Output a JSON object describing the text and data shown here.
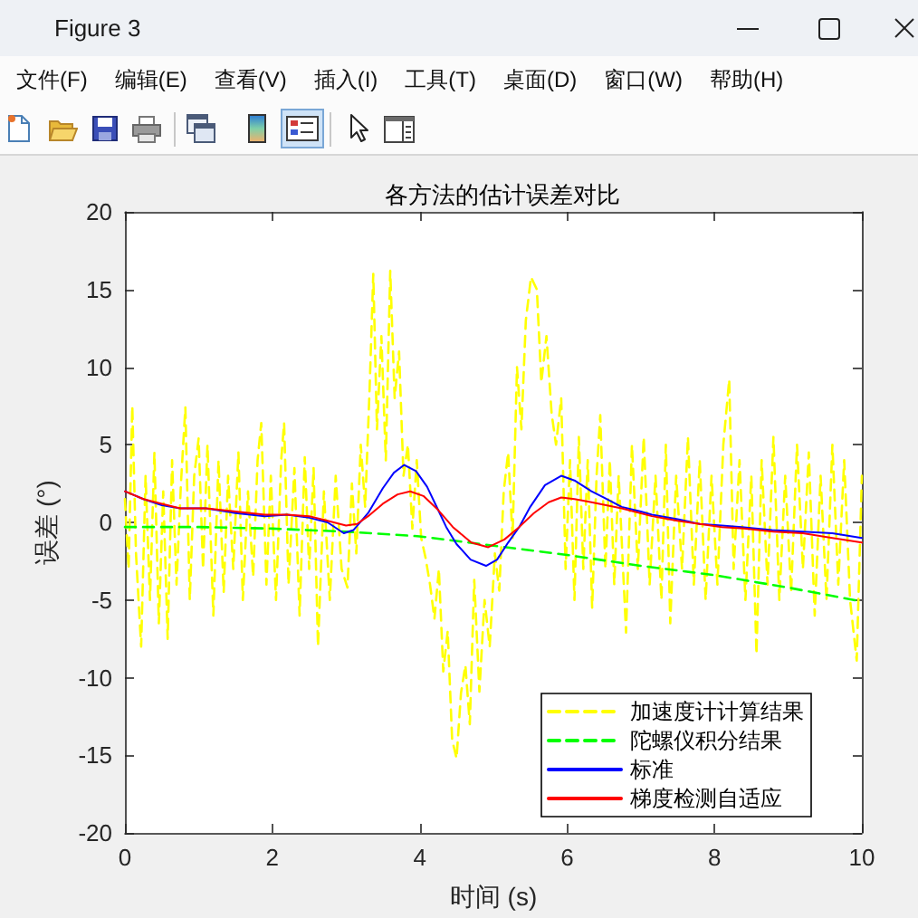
{
  "chart_data": {
    "type": "line",
    "title": "各方法的估计误差对比",
    "xlabel": "时间 (s)",
    "ylabel": "误差 (°)",
    "annotations": [
      "Figure 3",
      "文件(F)",
      "编辑(E)",
      "查看(V)",
      "插入(I)",
      "工具(T)",
      "桌面(D)",
      "窗口(W)",
      "帮助(H)"
    ],
    "xlim": [
      0,
      10
    ],
    "xticks": [
      0,
      2,
      4,
      6,
      8,
      10
    ],
    "ylim": [
      -20,
      20
    ],
    "yticks": [
      -20,
      -15,
      -10,
      -5,
      0,
      5,
      10,
      15,
      20
    ],
    "legend": "bottom right",
    "series": [
      {
        "name": "加速度计计算结果",
        "color": "#ffff00",
        "line_style": "dashed",
        "x": [
          0,
          0.05,
          0.1,
          0.15,
          0.22,
          0.28,
          0.34,
          0.4,
          0.46,
          0.52,
          0.58,
          0.64,
          0.7,
          0.76,
          0.82,
          0.88,
          0.94,
          1,
          1.06,
          1.12,
          1.2,
          1.27,
          1.34,
          1.4,
          1.47,
          1.54,
          1.6,
          1.67,
          1.74,
          1.8,
          1.85,
          1.92,
          1.98,
          2.05,
          2.12,
          2.16,
          2.22,
          2.3,
          2.37,
          2.44,
          2.5,
          2.56,
          2.62,
          2.7,
          2.78,
          2.86,
          2.94,
          3.02,
          3.08,
          3.14,
          3.2,
          3.26,
          3.32,
          3.37,
          3.42,
          3.48,
          3.54,
          3.6,
          3.66,
          3.72,
          3.78,
          3.84,
          3.9,
          3.96,
          4.02,
          4.08,
          4.14,
          4.2,
          4.26,
          4.32,
          4.38,
          4.44,
          4.5,
          4.56,
          4.62,
          4.68,
          4.74,
          4.81,
          4.88,
          4.95,
          5.02,
          5.08,
          5.14,
          5.2,
          5.26,
          5.32,
          5.38,
          5.44,
          5.51,
          5.59,
          5.65,
          5.72,
          5.79,
          5.85,
          5.92,
          5.98,
          6.04,
          6.1,
          6.16,
          6.22,
          6.28,
          6.34,
          6.4,
          6.45,
          6.52,
          6.58,
          6.64,
          6.7,
          6.8,
          6.88,
          6.96,
          7.04,
          7.12,
          7.2,
          7.28,
          7.34,
          7.4,
          7.48,
          7.56,
          7.64,
          7.72,
          7.8,
          7.88,
          7.96,
          8.04,
          8.12,
          8.2,
          8.26,
          8.34,
          8.42,
          8.5,
          8.57,
          8.64,
          8.72,
          8.8,
          8.88,
          8.96,
          9.04,
          9.12,
          9.2,
          9.28,
          9.36,
          9.44,
          9.52,
          9.6,
          9.68,
          9.76,
          9.84,
          9.93,
          10
        ],
        "values": [
          1.5,
          -3,
          7.5,
          -2,
          -8,
          3,
          -5,
          4.5,
          -6.5,
          2,
          -7.5,
          4,
          -4,
          2.5,
          7.4,
          -5,
          3,
          5.4,
          -3,
          5,
          -6,
          4,
          -4.5,
          3,
          -3,
          4.5,
          -5,
          2,
          -3.5,
          4,
          6.4,
          -4,
          3,
          -5,
          4,
          6.4,
          -4,
          3.5,
          -6,
          4.2,
          -3,
          3.5,
          -8,
          2,
          -5,
          3,
          -3,
          -4.2,
          2.5,
          -2,
          5,
          1,
          8.6,
          16,
          6,
          12,
          4,
          16.2,
          8,
          11,
          3,
          5,
          -0.4,
          4,
          -1,
          -2.3,
          -4,
          -6.2,
          -3,
          -9.6,
          -7,
          -14,
          -15.2,
          -11,
          -9.2,
          -13,
          -3.7,
          -10.9,
          -5,
          -8,
          -2,
          -4.4,
          2,
          4.5,
          -1,
          10,
          6,
          13,
          15.8,
          15,
          9,
          12,
          7,
          5,
          8,
          -3,
          4,
          -5,
          5.5,
          -3,
          4,
          -5.5,
          3,
          6.9,
          -3,
          4,
          -4,
          3,
          -7.1,
          5,
          -3,
          5.5,
          -4,
          3,
          -5,
          5,
          -6.5,
          3,
          -3,
          5.5,
          -4,
          4,
          -5,
          3,
          -4,
          5,
          9.2,
          -3,
          4,
          -5,
          3,
          -8.5,
          4,
          -4,
          5.5,
          -5,
          3,
          -4.5,
          5,
          -3,
          4.5,
          -6,
          3,
          -5,
          5,
          -4,
          4,
          -5,
          -8.9,
          3
        ]
      },
      {
        "name": "陀螺仪积分结果",
        "color": "#00ff00",
        "line_style": "dashed",
        "x": [
          0,
          1,
          2,
          3,
          4,
          4.5,
          5,
          6,
          7,
          8,
          9,
          10
        ],
        "values": [
          -0.3,
          -0.3,
          -0.4,
          -0.6,
          -0.9,
          -1.2,
          -1.5,
          -2.1,
          -2.8,
          -3.4,
          -4.2,
          -5.1
        ]
      },
      {
        "name": "标准",
        "color": "#0000ff",
        "line_style": "solid",
        "x": [
          0,
          0.25,
          0.5,
          0.75,
          1.1,
          1.5,
          1.9,
          2.2,
          2.5,
          2.75,
          2.97,
          3.1,
          3.3,
          3.5,
          3.65,
          3.79,
          3.95,
          4.1,
          4.25,
          4.36,
          4.5,
          4.69,
          4.9,
          5.05,
          5.2,
          5.35,
          5.5,
          5.7,
          5.92,
          6.1,
          6.33,
          6.5,
          6.74,
          7,
          7.15,
          7.5,
          7.8,
          8.1,
          8.37,
          8.78,
          9.2,
          9.6,
          10
        ],
        "values": [
          2,
          1.5,
          1.1,
          0.9,
          0.9,
          0.6,
          0.4,
          0.5,
          0.3,
          0,
          -0.7,
          -0.5,
          0.6,
          2.2,
          3.2,
          3.7,
          3.3,
          2.3,
          0.8,
          -0.3,
          -1.4,
          -2.4,
          -2.8,
          -2.4,
          -1.3,
          -0.3,
          1,
          2.4,
          3,
          2.7,
          2,
          1.6,
          1,
          0.7,
          0.5,
          0.2,
          -0.1,
          -0.2,
          -0.3,
          -0.5,
          -0.6,
          -0.7,
          -1
        ]
      },
      {
        "name": "梯度检测自适应",
        "color": "#ff0000",
        "line_style": "solid",
        "x": [
          0,
          0.25,
          0.5,
          0.75,
          1.1,
          1.5,
          1.9,
          2.2,
          2.5,
          2.75,
          3,
          3.15,
          3.3,
          3.5,
          3.7,
          3.87,
          4.05,
          4.25,
          4.45,
          4.7,
          4.93,
          5.15,
          5.35,
          5.55,
          5.75,
          5.92,
          6.1,
          6.33,
          6.74,
          7.15,
          7.5,
          7.8,
          8.1,
          8.4,
          8.8,
          9.2,
          9.6,
          10
        ],
        "values": [
          2,
          1.5,
          1.2,
          0.9,
          0.9,
          0.7,
          0.5,
          0.5,
          0.4,
          0.1,
          -0.2,
          -0.1,
          0.4,
          1.2,
          1.8,
          2,
          1.7,
          0.8,
          -0.3,
          -1.3,
          -1.6,
          -1.1,
          -0.3,
          0.6,
          1.3,
          1.6,
          1.5,
          1.3,
          0.9,
          0.4,
          0.1,
          -0.1,
          -0.3,
          -0.4,
          -0.6,
          -0.7,
          -1,
          -1.3
        ]
      }
    ]
  }
}
